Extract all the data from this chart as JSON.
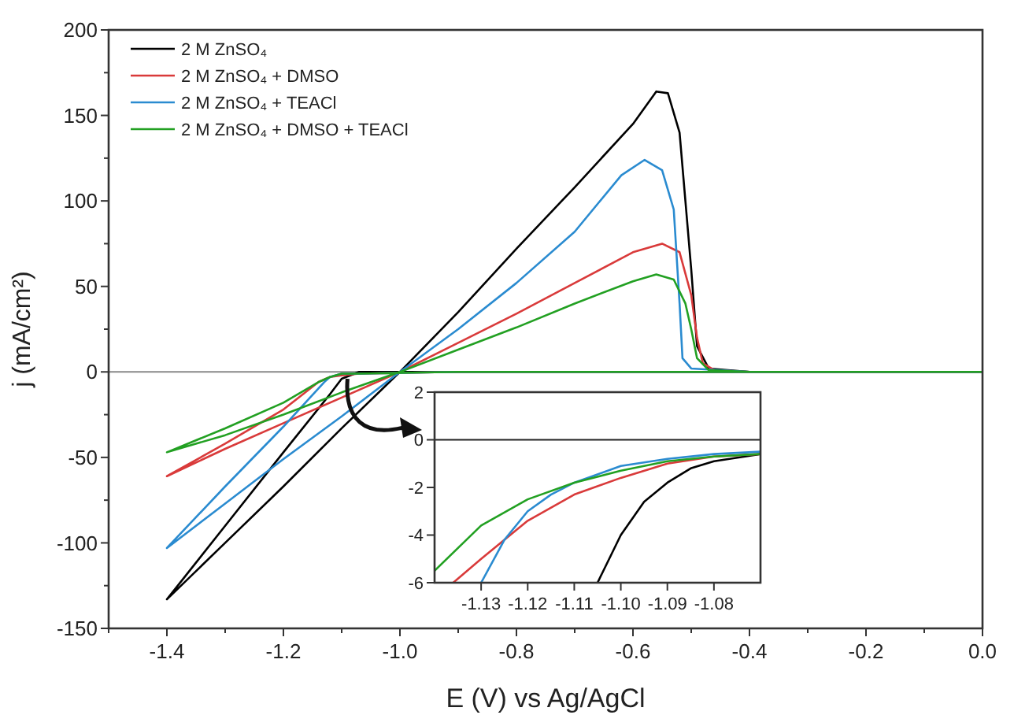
{
  "chart_data": [
    {
      "type": "line",
      "xlabel": "E (V) vs Ag/AgCl",
      "ylabel": "j (mA/cm²)",
      "xlim": [
        -1.5,
        0
      ],
      "ylim": [
        -150,
        200
      ],
      "xticks": [
        {
          "value": -1.5,
          "label": null
        },
        -1.4,
        {
          "value": -1.3,
          "label": null
        },
        -1.2,
        {
          "value": -1.1,
          "label": null
        },
        {
          "value": -1.0,
          "label": "-1.0"
        },
        {
          "value": -0.9,
          "label": null
        },
        -0.8,
        {
          "value": -0.7,
          "label": null
        },
        -0.6,
        {
          "value": -0.5,
          "label": null
        },
        -0.4,
        {
          "value": -0.3,
          "label": null
        },
        -0.2,
        {
          "value": -0.1,
          "label": null
        },
        {
          "value": 0,
          "label": "0.0"
        }
      ],
      "yticks": [
        -150,
        {
          "value": -125,
          "label": null
        },
        -100,
        {
          "value": -75,
          "label": null
        },
        -50,
        {
          "value": -25,
          "label": null
        },
        0,
        {
          "value": 25,
          "label": null
        },
        50,
        {
          "value": 75,
          "label": null
        },
        100,
        {
          "value": 125,
          "label": null
        },
        150,
        {
          "value": 175,
          "label": null
        },
        200
      ],
      "legend": "top left",
      "ref_lines": [
        {
          "axis": "y",
          "value": 0,
          "color": "#888888"
        }
      ],
      "series": [
        {
          "name": "2 M ZnSO₄",
          "color": "#000000",
          "x": [
            0,
            -0.9,
            -1.07,
            -1.1,
            -1.12,
            -1.2,
            -1.3,
            -1.4,
            -1.3,
            -1.2,
            -1.1,
            -1.0,
            -0.9,
            -0.8,
            -0.7,
            -0.6,
            -0.56,
            -0.54,
            -0.52,
            -0.5,
            -0.49,
            -0.47,
            -0.4
          ],
          "values": [
            0,
            0,
            0,
            -4,
            -13,
            -47,
            -90,
            -133,
            -100,
            -67,
            -33,
            0,
            35,
            72,
            108,
            145,
            164,
            163,
            140,
            60,
            15,
            2,
            0
          ]
        },
        {
          "name": "2 M ZnSO₄ + DMSO",
          "color": "#d93a3a",
          "x": [
            0,
            -0.9,
            -1.07,
            -1.1,
            -1.12,
            -1.14,
            -1.2,
            -1.3,
            -1.4,
            -1.3,
            -1.2,
            -1.1,
            -1.0,
            -0.9,
            -0.8,
            -0.7,
            -0.6,
            -0.55,
            -0.52,
            -0.5,
            -0.49,
            -0.48,
            -0.46,
            -0.4
          ],
          "values": [
            0,
            0,
            -1,
            -2,
            -3,
            -6,
            -22,
            -42,
            -61,
            -45,
            -30,
            -15,
            0,
            17,
            34,
            52,
            70,
            75,
            70,
            45,
            20,
            5,
            1,
            0
          ]
        },
        {
          "name": "2 M ZnSO₄ + TEACl",
          "color": "#2a8bd0",
          "x": [
            0,
            -0.9,
            -1.07,
            -1.1,
            -1.12,
            -1.13,
            -1.2,
            -1.3,
            -1.4,
            -1.3,
            -1.2,
            -1.1,
            -1.0,
            -0.9,
            -0.8,
            -0.7,
            -0.62,
            -0.58,
            -0.55,
            -0.53,
            -0.52,
            -0.515,
            -0.5,
            -0.4
          ],
          "values": [
            0,
            0,
            -1,
            -1,
            -3,
            -6,
            -32,
            -67,
            -103,
            -77,
            -51,
            -26,
            0,
            25,
            52,
            82,
            115,
            124,
            118,
            95,
            40,
            8,
            2,
            0
          ]
        },
        {
          "name": "2 M ZnSO₄ + DMSO + TEACl",
          "color": "#22a022",
          "x": [
            0,
            -0.9,
            -1.07,
            -1.1,
            -1.12,
            -1.14,
            -1.2,
            -1.3,
            -1.4,
            -1.3,
            -1.2,
            -1.1,
            -1.0,
            -0.9,
            -0.8,
            -0.7,
            -0.6,
            -0.56,
            -0.53,
            -0.51,
            -0.5,
            -0.49,
            -0.47,
            -0.4
          ],
          "values": [
            0,
            0,
            -1,
            -1,
            -3,
            -6,
            -18,
            -33,
            -47,
            -37,
            -25,
            -12,
            0,
            13,
            26,
            40,
            53,
            57,
            54,
            40,
            25,
            8,
            1,
            0
          ]
        }
      ]
    },
    {
      "type": "line",
      "xlim": [
        -1.14,
        -1.07
      ],
      "ylim": [
        -6,
        2
      ],
      "xticks": [
        -1.13,
        -1.12,
        -1.11,
        {
          "value": -1.1,
          "label": "-1.10"
        },
        -1.09,
        -1.08
      ],
      "yticks": [
        -6,
        -4,
        -2,
        0,
        2
      ],
      "ref_lines": [
        {
          "axis": "y",
          "value": 0,
          "color": "#222222"
        }
      ],
      "series": [
        {
          "color": "#000000",
          "x": [
            -1.07,
            -1.075,
            -1.08,
            -1.085,
            -1.09,
            -1.095,
            -1.1,
            -1.105
          ],
          "values": [
            -0.6,
            -0.75,
            -0.9,
            -1.2,
            -1.8,
            -2.6,
            -4,
            -6
          ]
        },
        {
          "color": "#d93a3a",
          "x": [
            -1.07,
            -1.08,
            -1.09,
            -1.1,
            -1.11,
            -1.12,
            -1.13,
            -1.136
          ],
          "values": [
            -0.6,
            -0.7,
            -1.0,
            -1.6,
            -2.3,
            -3.4,
            -5.0,
            -6
          ]
        },
        {
          "color": "#2a8bd0",
          "x": [
            -1.07,
            -1.08,
            -1.09,
            -1.1,
            -1.11,
            -1.115,
            -1.12,
            -1.125,
            -1.13
          ],
          "values": [
            -0.5,
            -0.6,
            -0.8,
            -1.1,
            -1.8,
            -2.3,
            -3.0,
            -4.2,
            -6
          ]
        },
        {
          "color": "#22a022",
          "x": [
            -1.07,
            -1.08,
            -1.09,
            -1.1,
            -1.11,
            -1.12,
            -1.13,
            -1.14
          ],
          "values": [
            -0.6,
            -0.7,
            -0.9,
            -1.3,
            -1.8,
            -2.5,
            -3.6,
            -5.5
          ]
        }
      ]
    }
  ]
}
